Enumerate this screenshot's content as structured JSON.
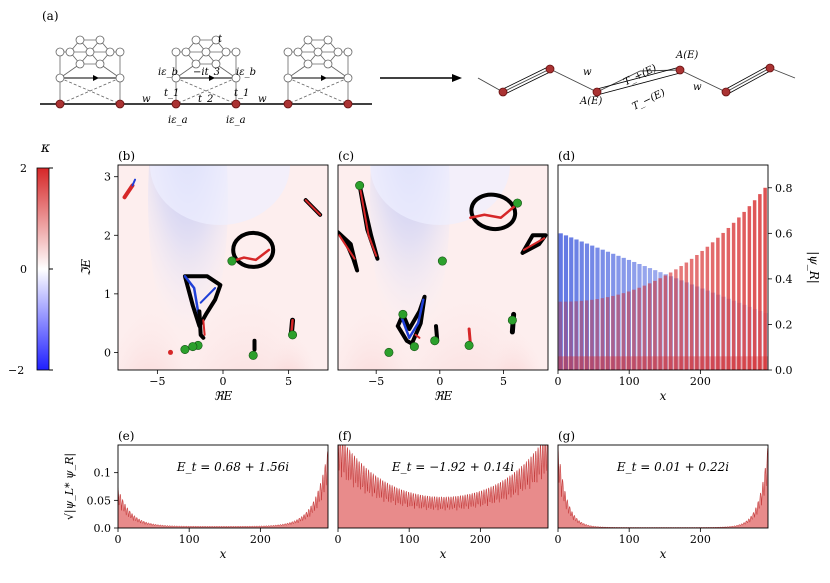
{
  "figure": {
    "panel_labels": [
      "(a)",
      "(b)",
      "(c)",
      "(d)",
      "(e)",
      "(f)",
      "(g)"
    ],
    "schematic": {
      "labels": {
        "t": "t",
        "w": "w",
        "ieps_b_left": "iε_b",
        "ieps_b_right": "iε_b",
        "it3": "−it_3",
        "t1_left": "t_1",
        "t1_right": "t_1",
        "t2": "t_2",
        "ieps_a_left": "iε_a",
        "ieps_a_right": "iε_a"
      },
      "effective_labels": {
        "w_left": "w",
        "w_right": "w",
        "A_left": "A(E)",
        "A_right": "A(E)",
        "T_plus": "T_+(E)",
        "T_minus": "T_−(E)"
      }
    },
    "colorbar": {
      "title": "κ",
      "ticks": [
        "2",
        "0",
        "−2"
      ],
      "colors": {
        "high": "#d62728",
        "mid": "#ffffff",
        "low": "#1f1fff"
      }
    },
    "colors": {
      "red": "#d62728",
      "blue": "#1f3fd8",
      "black": "#000000",
      "green": "#2ca02c",
      "fill_red": "#e06464"
    }
  },
  "chart_data": [
    {
      "id": "b",
      "type": "scatter",
      "xlabel": "ℜE",
      "ylabel": "ℑE",
      "xlim": [
        -8,
        8
      ],
      "ylim": [
        -0.3,
        3.2
      ],
      "xticks": [
        -5,
        0,
        5
      ],
      "yticks": [
        0,
        1,
        2,
        3
      ],
      "xtick_labels": [
        "−5",
        "0",
        "5"
      ],
      "ytick_labels": [
        "0",
        "1",
        "2",
        "3"
      ],
      "green_points": [
        [
          0.68,
          1.56
        ],
        [
          -1.9,
          0.12
        ],
        [
          -2.3,
          0.1
        ],
        [
          2.3,
          -0.05
        ],
        [
          5.3,
          0.3
        ],
        [
          -2.9,
          0.05
        ]
      ]
    },
    {
      "id": "c",
      "type": "scatter",
      "xlabel": "ℜE",
      "ylabel": "",
      "xlim": [
        -8,
        8.5
      ],
      "ylim": [
        -0.3,
        3.2
      ],
      "xticks": [
        -5,
        0,
        5
      ],
      "xtick_labels": [
        "−5",
        "0",
        "5"
      ],
      "green_points": [
        [
          -6.3,
          2.85
        ],
        [
          0.2,
          1.56
        ],
        [
          -2.9,
          0.65
        ],
        [
          -2.0,
          0.1
        ],
        [
          -4.0,
          0.0
        ],
        [
          -0.4,
          0.2
        ],
        [
          2.3,
          0.12
        ],
        [
          5.7,
          0.55
        ],
        [
          6.1,
          2.55
        ]
      ]
    },
    {
      "id": "d",
      "type": "heatmap",
      "xlabel": "x",
      "ylabel": "|ψ_R|",
      "xlim": [
        0,
        295
      ],
      "ylim": [
        0,
        0.9
      ],
      "xticks": [
        0,
        100,
        200
      ],
      "yticks": [
        0.0,
        0.2,
        0.4,
        0.6,
        0.8
      ],
      "xtick_labels": [
        "0",
        "100",
        "200"
      ],
      "ytick_labels": [
        "0.0",
        "0.2",
        "0.4",
        "0.6",
        "0.8"
      ]
    },
    {
      "id": "e",
      "type": "area",
      "title": "E_t = 0.68 + 1.56i",
      "xlabel": "x",
      "ylabel": "√|ψ_L* ψ_R|",
      "xlim": [
        0,
        295
      ],
      "ylim": [
        0,
        0.15
      ],
      "xticks": [
        0,
        100,
        200
      ],
      "yticks": [
        0.0,
        0.05,
        0.1
      ],
      "xtick_labels": [
        "0",
        "100",
        "200"
      ],
      "ytick_labels": [
        "0.0",
        "0.05",
        "0.1"
      ],
      "decay": 18,
      "amp_left": 0.07,
      "amp_right": 0.14,
      "floor": 0.003
    },
    {
      "id": "f",
      "type": "area",
      "title": "E_t = −1.92 + 0.14i",
      "xlabel": "x",
      "ylabel": "",
      "xlim": [
        0,
        295
      ],
      "ylim": [
        0,
        0.15
      ],
      "xticks": [
        0,
        100,
        200
      ],
      "xtick_labels": [
        "0",
        "100",
        "200"
      ],
      "decay": 70,
      "amp_left": 0.15,
      "amp_right": 0.15,
      "floor": 0.02
    },
    {
      "id": "g",
      "type": "area",
      "title": "E_t = 0.01 + 0.22i",
      "xlabel": "x",
      "ylabel": "",
      "xlim": [
        0,
        295
      ],
      "ylim": [
        0,
        0.15
      ],
      "xticks": [
        0,
        100,
        200
      ],
      "xtick_labels": [
        "0",
        "100",
        "200"
      ],
      "decay": 12,
      "amp_left": 0.15,
      "amp_right": 0.15,
      "floor": 0.001
    }
  ]
}
